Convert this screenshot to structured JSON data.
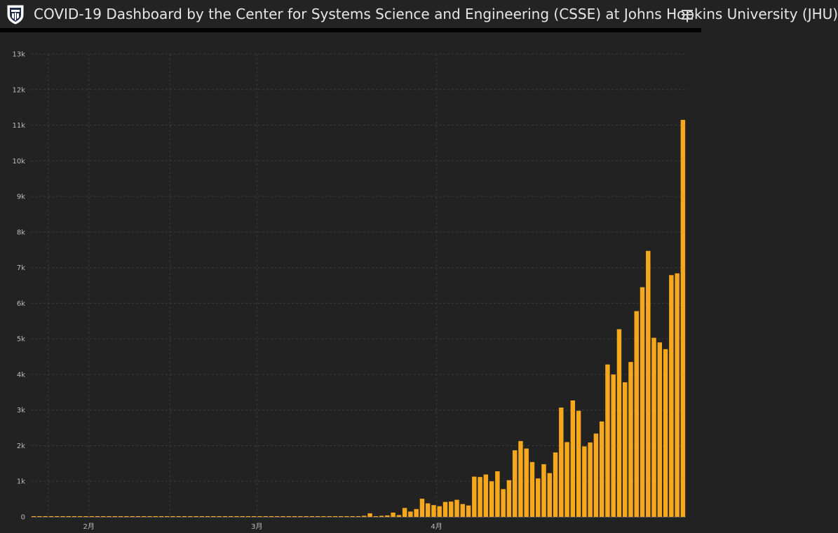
{
  "header": {
    "title": "COVID-19 Dashboard by the Center for Systems Science and Engineering (CSSE) at Johns Hopkins University (JHU)",
    "logo_icon": "university-seal-icon",
    "menu_icon": "hamburger-menu-icon"
  },
  "colors": {
    "background": "#222222",
    "header_background": "#232323",
    "header_border": "#000000",
    "bar": "#f5a81c",
    "gridline": "#3c3c3c",
    "axis_text": "#bdbdbd",
    "title_text": "#e6e6e6"
  },
  "chart_data": {
    "type": "bar",
    "title": "",
    "xlabel": "",
    "ylabel": "",
    "ylim": [
      0,
      13000
    ],
    "yticks": [
      0,
      1000,
      2000,
      3000,
      4000,
      5000,
      6000,
      7000,
      8000,
      9000,
      10000,
      11000,
      12000,
      13000
    ],
    "ytick_labels": [
      "0",
      "1k",
      "2k",
      "3k",
      "4k",
      "5k",
      "6k",
      "7k",
      "8k",
      "9k",
      "10k",
      "11k",
      "12k",
      "13k"
    ],
    "x_start_date": "2020-01-22",
    "xticks": [
      {
        "date": "2020-02-01",
        "label": "2月"
      },
      {
        "date": "2020-03-01",
        "label": "3月"
      },
      {
        "date": "2020-04-01",
        "label": "4月"
      }
    ],
    "grid": true,
    "series": [
      {
        "values": [
          0,
          0,
          0,
          0,
          0,
          0,
          0,
          0,
          0,
          0,
          0,
          0,
          0,
          0,
          0,
          0,
          0,
          0,
          0,
          0,
          0,
          0,
          0,
          0,
          0,
          0,
          0,
          0,
          0,
          0,
          0,
          0,
          0,
          0,
          0,
          0,
          0,
          0,
          0,
          0,
          0,
          0,
          0,
          0,
          0,
          20,
          0,
          0,
          0,
          0,
          0,
          0,
          0,
          0,
          0,
          0,
          0,
          30,
          100,
          10,
          30,
          40,
          120,
          50,
          250,
          150,
          220,
          510,
          380,
          330,
          300,
          420,
          430,
          480,
          360,
          320,
          1130,
          1120,
          1190,
          1000,
          1280,
          780,
          1030,
          1870,
          2130,
          1920,
          1540,
          1080,
          1480,
          1230,
          1810,
          3070,
          2100,
          3270,
          2980,
          1980,
          2090,
          2340,
          2680,
          4280,
          4000,
          5270,
          3780,
          4350,
          5780,
          6450,
          7470,
          5030,
          4900,
          4710,
          6790,
          6840,
          11150
        ]
      }
    ]
  }
}
